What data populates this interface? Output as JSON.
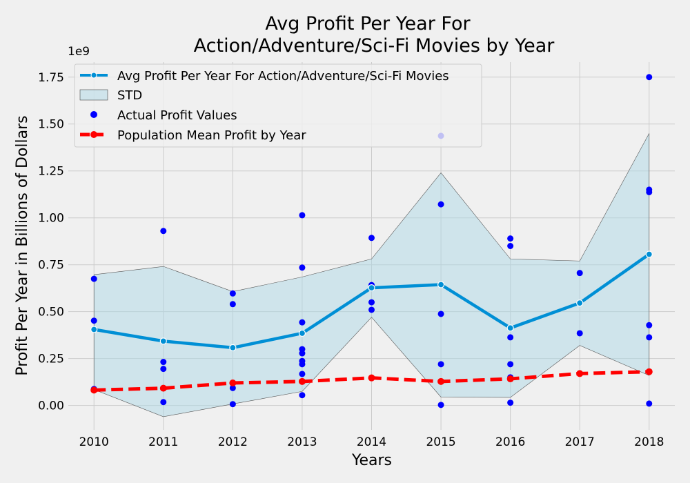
{
  "chart_data": {
    "type": "line",
    "title_line1": "Avg Profit Per Year For",
    "title_line2": "Action/Adventure/Sci-Fi Movies by Year",
    "xlabel": "Years",
    "ylabel": "Profit Per Year in Billions of Dollars",
    "y_offset_label": "1e9",
    "x": [
      2010,
      2011,
      2012,
      2013,
      2014,
      2015,
      2016,
      2017,
      2018
    ],
    "x_tick_labels": [
      "2010",
      "2011",
      "2012",
      "2013",
      "2014",
      "2015",
      "2016",
      "2017",
      "2018"
    ],
    "y_ticks": [
      0.0,
      0.25,
      0.5,
      0.75,
      1.0,
      1.25,
      1.5,
      1.75
    ],
    "y_tick_labels": [
      "0.00",
      "0.25",
      "0.50",
      "0.75",
      "1.00",
      "1.25",
      "1.50",
      "1.75"
    ],
    "xlim": [
      2009.63,
      2018.37
    ],
    "ylim": [
      -0.13,
      1.83
    ],
    "grid": true,
    "legend_position": "top-left",
    "series": [
      {
        "name": "Avg Profit Per Year For Action/Adventure/Sci-Fi Movies",
        "kind": "line",
        "color": "#008fd5",
        "values": [
          0.405,
          0.343,
          0.308,
          0.385,
          0.627,
          0.644,
          0.413,
          0.546,
          0.806
        ]
      },
      {
        "name": "STD",
        "kind": "band",
        "color": "#add8e6",
        "upper": [
          0.697,
          0.741,
          0.607,
          0.685,
          0.781,
          1.24,
          0.781,
          0.77,
          1.45
        ],
        "lower": [
          0.085,
          -0.06,
          0.008,
          0.075,
          0.47,
          0.045,
          0.043,
          0.32,
          0.16
        ]
      },
      {
        "name": "Actual Profit Values",
        "kind": "scatter",
        "color": "#0000ff",
        "points": [
          [
            2010,
            0.675
          ],
          [
            2010,
            0.452
          ],
          [
            2010,
            0.088
          ],
          [
            2011,
            0.93
          ],
          [
            2011,
            0.232
          ],
          [
            2011,
            0.195
          ],
          [
            2011,
            0.018
          ],
          [
            2012,
            0.597
          ],
          [
            2012,
            0.54
          ],
          [
            2012,
            0.093
          ],
          [
            2012,
            0.007
          ],
          [
            2013,
            1.014
          ],
          [
            2013,
            0.735
          ],
          [
            2013,
            0.443
          ],
          [
            2013,
            0.3
          ],
          [
            2013,
            0.278
          ],
          [
            2013,
            0.237
          ],
          [
            2013,
            0.22
          ],
          [
            2013,
            0.168
          ],
          [
            2013,
            0.055
          ],
          [
            2014,
            0.893
          ],
          [
            2014,
            0.642
          ],
          [
            2014,
            0.55
          ],
          [
            2014,
            0.51
          ],
          [
            2015,
            1.437
          ],
          [
            2015,
            1.072
          ],
          [
            2015,
            0.488
          ],
          [
            2015,
            0.22
          ],
          [
            2015,
            0.003
          ],
          [
            2016,
            0.89
          ],
          [
            2016,
            0.85
          ],
          [
            2016,
            0.363
          ],
          [
            2016,
            0.22
          ],
          [
            2016,
            0.15
          ],
          [
            2016,
            0.015
          ],
          [
            2017,
            0.706
          ],
          [
            2017,
            0.385
          ],
          [
            2018,
            1.75
          ],
          [
            2018,
            1.15
          ],
          [
            2018,
            1.137
          ],
          [
            2018,
            0.428
          ],
          [
            2018,
            0.363
          ],
          [
            2018,
            0.01
          ]
        ]
      },
      {
        "name": "Population Mean Profit by Year",
        "kind": "line-dashed",
        "color": "#ff0000",
        "values": [
          0.082,
          0.092,
          0.12,
          0.128,
          0.147,
          0.128,
          0.142,
          0.17,
          0.18
        ]
      }
    ]
  }
}
